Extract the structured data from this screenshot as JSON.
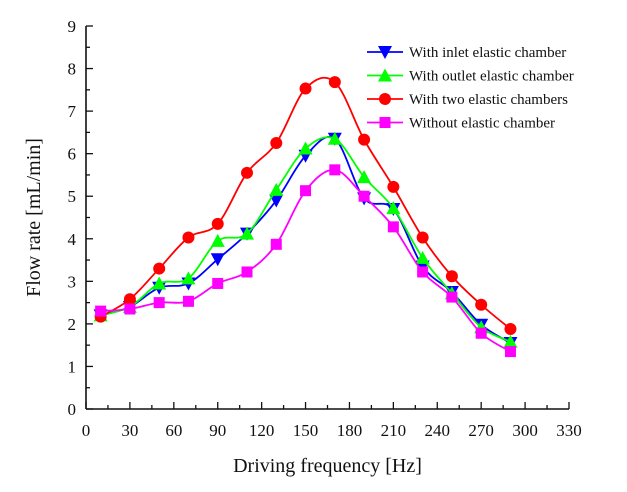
{
  "chart_data": {
    "type": "line",
    "title": "",
    "xlabel": "Driving frequency [Hz]",
    "ylabel": "Flow rate [mL/min]",
    "xlim": [
      0,
      330
    ],
    "ylim": [
      0,
      9
    ],
    "xticks": [
      "0",
      "30",
      "60",
      "90",
      "120",
      "150",
      "180",
      "210",
      "240",
      "270",
      "300",
      "330"
    ],
    "yticks": [
      "0",
      "1",
      "2",
      "3",
      "4",
      "5",
      "6",
      "7",
      "8",
      "9"
    ],
    "legend_position": "top-right",
    "x": [
      10,
      30,
      50,
      70,
      90,
      110,
      130,
      150,
      170,
      190,
      210,
      230,
      250,
      270,
      290
    ],
    "series": [
      {
        "name": "With inlet elastic chamber",
        "color": "#0000ff",
        "marker": "triangle-down",
        "values": [
          2.2,
          2.4,
          2.85,
          2.95,
          3.52,
          4.12,
          4.9,
          5.95,
          6.35,
          4.95,
          4.7,
          3.35,
          2.75,
          1.98,
          1.55
        ]
      },
      {
        "name": "With outlet elastic chamber",
        "color": "#00ff00",
        "marker": "triangle-up",
        "values": [
          2.2,
          2.4,
          2.95,
          3.07,
          3.95,
          4.12,
          5.15,
          6.12,
          6.35,
          5.45,
          4.72,
          3.55,
          2.72,
          1.92,
          1.58
        ]
      },
      {
        "name": "With two elastic chambers",
        "color": "#ff0000",
        "marker": "circle",
        "values": [
          2.17,
          2.58,
          3.3,
          4.03,
          4.35,
          5.55,
          6.25,
          7.53,
          7.68,
          6.33,
          5.22,
          4.03,
          3.12,
          2.45,
          1.88
        ]
      },
      {
        "name": "Without  elastic chamber",
        "color": "#ff00ff",
        "marker": "square",
        "values": [
          2.3,
          2.35,
          2.5,
          2.53,
          2.95,
          3.22,
          3.87,
          5.13,
          5.62,
          5.0,
          4.28,
          3.22,
          2.63,
          1.78,
          1.35
        ]
      }
    ]
  }
}
